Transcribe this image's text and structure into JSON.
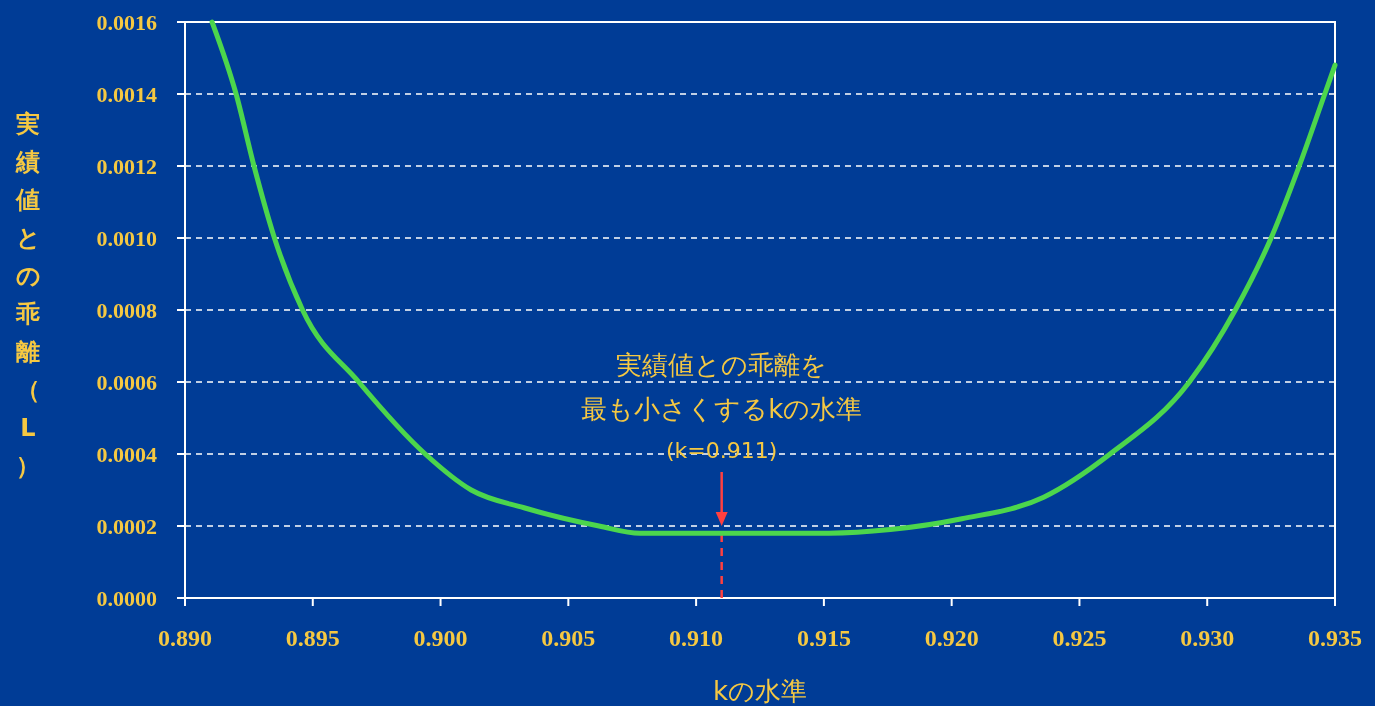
{
  "chart_data": {
    "type": "line",
    "xlabel": "kの水準",
    "ylabel": "実績値との乖離（L）",
    "x": [
      0.89106,
      0.892,
      0.8927,
      0.8935,
      0.8946,
      0.8968,
      0.8994,
      0.9012,
      0.9033,
      0.9062,
      0.9078,
      0.911,
      0.9152,
      0.9176,
      0.9204,
      0.9236,
      0.9262,
      0.9293,
      0.9311,
      0.9325,
      0.9336,
      0.9346,
      0.935
    ],
    "series": [
      {
        "color": "#4cd64c",
        "values": [
          0.0016,
          0.0014,
          0.0012,
          0.001,
          0.0008,
          0.0006,
          0.0004,
          0.0003,
          0.00025,
          0.0002,
          0.00018,
          0.00018,
          0.00018,
          0.00019,
          0.00022,
          0.00028,
          0.0004,
          0.0006,
          0.0008,
          0.001,
          0.0012,
          0.0014,
          0.00148
        ]
      }
    ],
    "xlim": [
      0.89,
      0.935
    ],
    "xticks": [
      {
        "value": 0.89,
        "label": "0.890"
      },
      {
        "value": 0.895,
        "label": "0.895"
      },
      {
        "value": 0.9,
        "label": "0.900"
      },
      {
        "value": 0.905,
        "label": "0.905"
      },
      {
        "value": 0.91,
        "label": "0.910"
      },
      {
        "value": 0.915,
        "label": "0.915"
      },
      {
        "value": 0.92,
        "label": "0.920"
      },
      {
        "value": 0.925,
        "label": "0.925"
      },
      {
        "value": 0.93,
        "label": "0.930"
      },
      {
        "value": 0.935,
        "label": "0.935"
      }
    ],
    "ylim": [
      0,
      0.0016
    ],
    "yticks": [
      {
        "value": 0,
        "label": "0.0000"
      },
      {
        "value": 0.0002,
        "label": "0.0002"
      },
      {
        "value": 0.0004,
        "label": "0.0004"
      },
      {
        "value": 0.0006,
        "label": "0.0006"
      },
      {
        "value": 0.0008,
        "label": "0.0008"
      },
      {
        "value": 0.001,
        "label": "0.0010"
      },
      {
        "value": 0.0012,
        "label": "0.0012"
      },
      {
        "value": 0.0014,
        "label": "0.0014"
      },
      {
        "value": 0.0016,
        "label": "0.0016"
      }
    ],
    "grid": "y",
    "marker": "none",
    "line_style": "solid",
    "ref_lines": [
      {
        "axis": "x",
        "value": 0.911,
        "color": "#ff4040",
        "line_style": "dashed"
      }
    ],
    "annotations": [
      {
        "text": "(k=0.911)",
        "x": 0.911,
        "y": 0.0002
      },
      "実績値との乖離を",
      "最も小さくするkの水準"
    ]
  }
}
